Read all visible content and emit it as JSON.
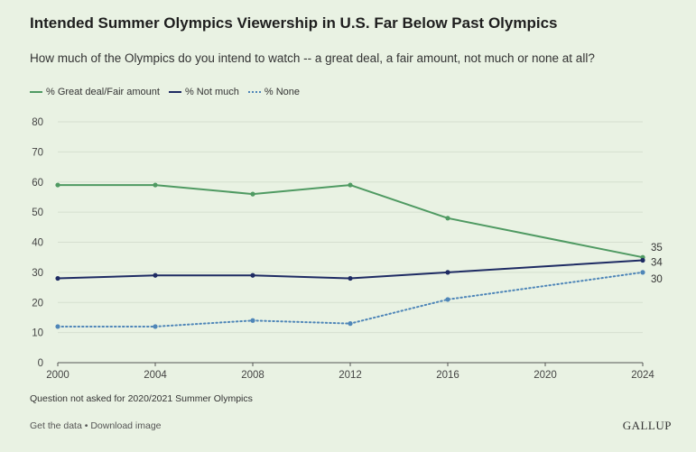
{
  "header": {
    "title": "Intended Summer Olympics Viewership in U.S. Far Below Past Olympics",
    "subtitle": "How much of the Olympics do you intend to watch -- a great deal, a fair amount, not much or none at all?"
  },
  "legend": {
    "great": "% Great deal/Fair amount",
    "notmuch": "% Not much",
    "none": "% None"
  },
  "footer": {
    "note": "Question not asked for 2020/2021 Summer Olympics",
    "get_data": "Get the data",
    "separator": " • ",
    "download": "Download image",
    "brand": "GALLUP"
  },
  "colors": {
    "background": "#e9f2e3",
    "great": "#4f9a62",
    "notmuch": "#1e2b63",
    "none": "#4f86b8",
    "grid": "#d5dfcf",
    "axis": "#555555"
  },
  "chart_data": {
    "type": "line",
    "x_ticks": [
      2000,
      2004,
      2008,
      2012,
      2016,
      2020,
      2024
    ],
    "xlim": [
      2000,
      2024
    ],
    "ylim": [
      0,
      80
    ],
    "y_ticks": [
      0,
      10,
      20,
      30,
      40,
      50,
      60,
      70,
      80
    ],
    "grid": true,
    "legend_position": "top-left",
    "series": [
      {
        "key": "great",
        "name": "% Great deal/Fair amount",
        "style": "solid",
        "x": [
          2000,
          2004,
          2008,
          2012,
          2016,
          2024
        ],
        "values": [
          59,
          59,
          56,
          59,
          48,
          35
        ],
        "end_label": "35"
      },
      {
        "key": "notmuch",
        "name": "% Not much",
        "style": "solid",
        "x": [
          2000,
          2004,
          2008,
          2012,
          2016,
          2024
        ],
        "values": [
          28,
          29,
          29,
          28,
          30,
          34
        ],
        "end_label": "34"
      },
      {
        "key": "none",
        "name": "% None",
        "style": "dotted",
        "x": [
          2000,
          2004,
          2008,
          2012,
          2016,
          2024
        ],
        "values": [
          12,
          12,
          14,
          13,
          21,
          30
        ],
        "end_label": "30"
      }
    ]
  }
}
